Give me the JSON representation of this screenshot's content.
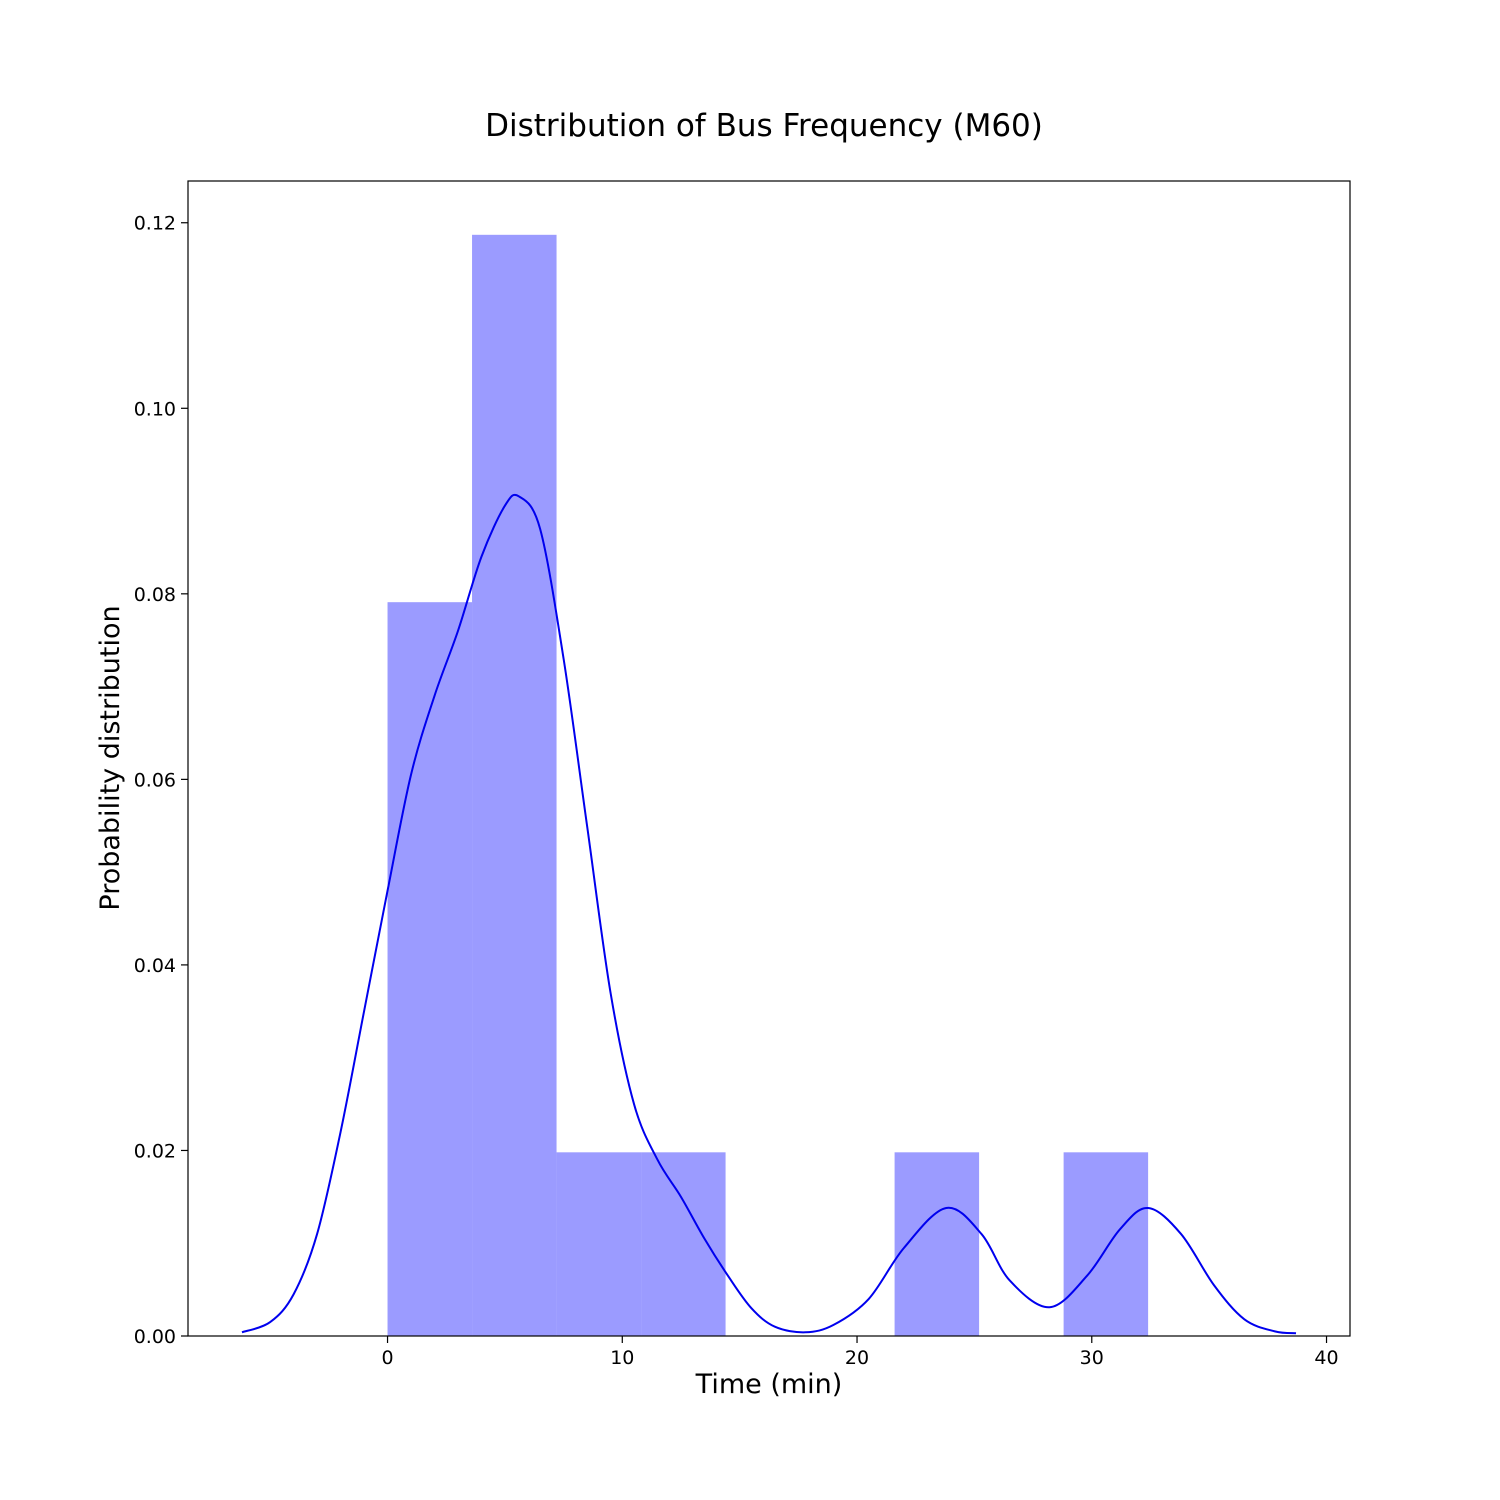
{
  "chart_data": {
    "type": "bar",
    "title": "Distribution of Bus Frequency (M60)",
    "xlabel": "Time (min)",
    "ylabel": "Probability distribution",
    "xlim": [
      -8.5,
      41
    ],
    "ylim": [
      0,
      0.1245
    ],
    "x_ticks": [
      0,
      10,
      20,
      30,
      40
    ],
    "x_tick_labels": [
      "0",
      "10",
      "20",
      "30",
      "40"
    ],
    "y_ticks": [
      0,
      0.02,
      0.04,
      0.06,
      0.08,
      0.1,
      0.12
    ],
    "y_tick_labels": [
      "0.00",
      "0.02",
      "0.04",
      "0.06",
      "0.08",
      "0.10",
      "0.12"
    ],
    "grid": false,
    "histogram": {
      "color": "#9b9bff",
      "bins": [
        {
          "x0": 0.0,
          "x1": 3.6,
          "value": 0.0791
        },
        {
          "x0": 3.6,
          "x1": 7.2,
          "value": 0.1187
        },
        {
          "x0": 7.2,
          "x1": 10.8,
          "value": 0.0198
        },
        {
          "x0": 10.8,
          "x1": 14.4,
          "value": 0.0198
        },
        {
          "x0": 14.4,
          "x1": 18.0,
          "value": 0.0
        },
        {
          "x0": 18.0,
          "x1": 21.6,
          "value": 0.0
        },
        {
          "x0": 21.6,
          "x1": 25.2,
          "value": 0.0198
        },
        {
          "x0": 25.2,
          "x1": 28.8,
          "value": 0.0
        },
        {
          "x0": 28.8,
          "x1": 32.4,
          "value": 0.0198
        }
      ]
    },
    "kde": {
      "color": "#0000ee",
      "points": [
        [
          -6.2,
          0.0004
        ],
        [
          -5.0,
          0.0015
        ],
        [
          -4.0,
          0.0045
        ],
        [
          -3.0,
          0.011
        ],
        [
          -2.0,
          0.022
        ],
        [
          -1.0,
          0.035
        ],
        [
          0.0,
          0.048
        ],
        [
          1.0,
          0.0605
        ],
        [
          2.0,
          0.069
        ],
        [
          3.0,
          0.076
        ],
        [
          4.0,
          0.084
        ],
        [
          5.0,
          0.0895
        ],
        [
          5.6,
          0.0905
        ],
        [
          6.5,
          0.087
        ],
        [
          7.5,
          0.073
        ],
        [
          8.5,
          0.055
        ],
        [
          9.5,
          0.037
        ],
        [
          10.5,
          0.025
        ],
        [
          11.5,
          0.019
        ],
        [
          12.5,
          0.015
        ],
        [
          13.5,
          0.0105
        ],
        [
          14.5,
          0.0065
        ],
        [
          15.5,
          0.003
        ],
        [
          16.5,
          0.001
        ],
        [
          17.8,
          0.0004
        ],
        [
          19.0,
          0.0012
        ],
        [
          20.5,
          0.004
        ],
        [
          22.0,
          0.0095
        ],
        [
          23.8,
          0.0138
        ],
        [
          25.3,
          0.011
        ],
        [
          26.5,
          0.006
        ],
        [
          28.2,
          0.0031
        ],
        [
          29.8,
          0.0065
        ],
        [
          31.2,
          0.0115
        ],
        [
          32.4,
          0.0138
        ],
        [
          33.8,
          0.011
        ],
        [
          35.2,
          0.0055
        ],
        [
          36.5,
          0.0018
        ],
        [
          37.8,
          0.0005
        ],
        [
          38.7,
          0.0003
        ]
      ]
    }
  }
}
